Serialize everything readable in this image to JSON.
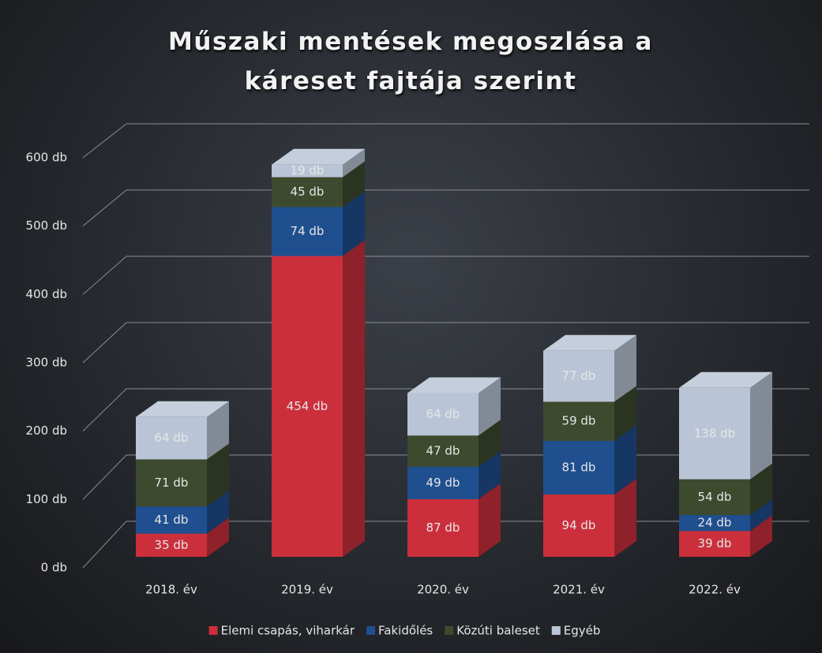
{
  "chart_data": {
    "type": "bar3d_stacked",
    "title": "Műszaki mentések megoszlása a káreset fajtája szerint",
    "categories": [
      "2018. év",
      "2019. év",
      "2020. év",
      "2021. év",
      "2022. év"
    ],
    "series": [
      {
        "name": "Elemi csapás, viharkár",
        "color": "#cc2f3c",
        "values": [
          35,
          454,
          87,
          94,
          39
        ],
        "value_labels": [
          "35 db",
          "454 db",
          "87 db",
          "94 db",
          "39 db"
        ]
      },
      {
        "name": "Fakidőlés",
        "color": "#1f4f8f",
        "values": [
          41,
          74,
          49,
          81,
          24
        ],
        "value_labels": [
          "41 db",
          "74 db",
          "49 db",
          "81 db",
          "24 db"
        ]
      },
      {
        "name": "Közúti baleset",
        "color": "#3d4a2e",
        "values": [
          71,
          45,
          47,
          59,
          54
        ],
        "value_labels": [
          "71 db",
          "45 db",
          "47 db",
          "59 db",
          "54 db"
        ]
      },
      {
        "name": "Egyéb",
        "color": "#b9c5d6",
        "values": [
          64,
          19,
          64,
          77,
          138
        ],
        "value_labels": [
          "64 db",
          "19 db",
          "64 db",
          "77 db",
          "138 db"
        ]
      }
    ],
    "ylim": [
      0,
      600
    ],
    "yticks": [
      {
        "value": 0,
        "label": "0 db"
      },
      {
        "value": 100,
        "label": "100 db"
      },
      {
        "value": 200,
        "label": "200 db"
      },
      {
        "value": 300,
        "label": "300 db"
      },
      {
        "value": 400,
        "label": "400 db"
      },
      {
        "value": 500,
        "label": "500 db"
      },
      {
        "value": 600,
        "label": "600 db"
      }
    ],
    "grid": true,
    "legend": "bottom"
  }
}
